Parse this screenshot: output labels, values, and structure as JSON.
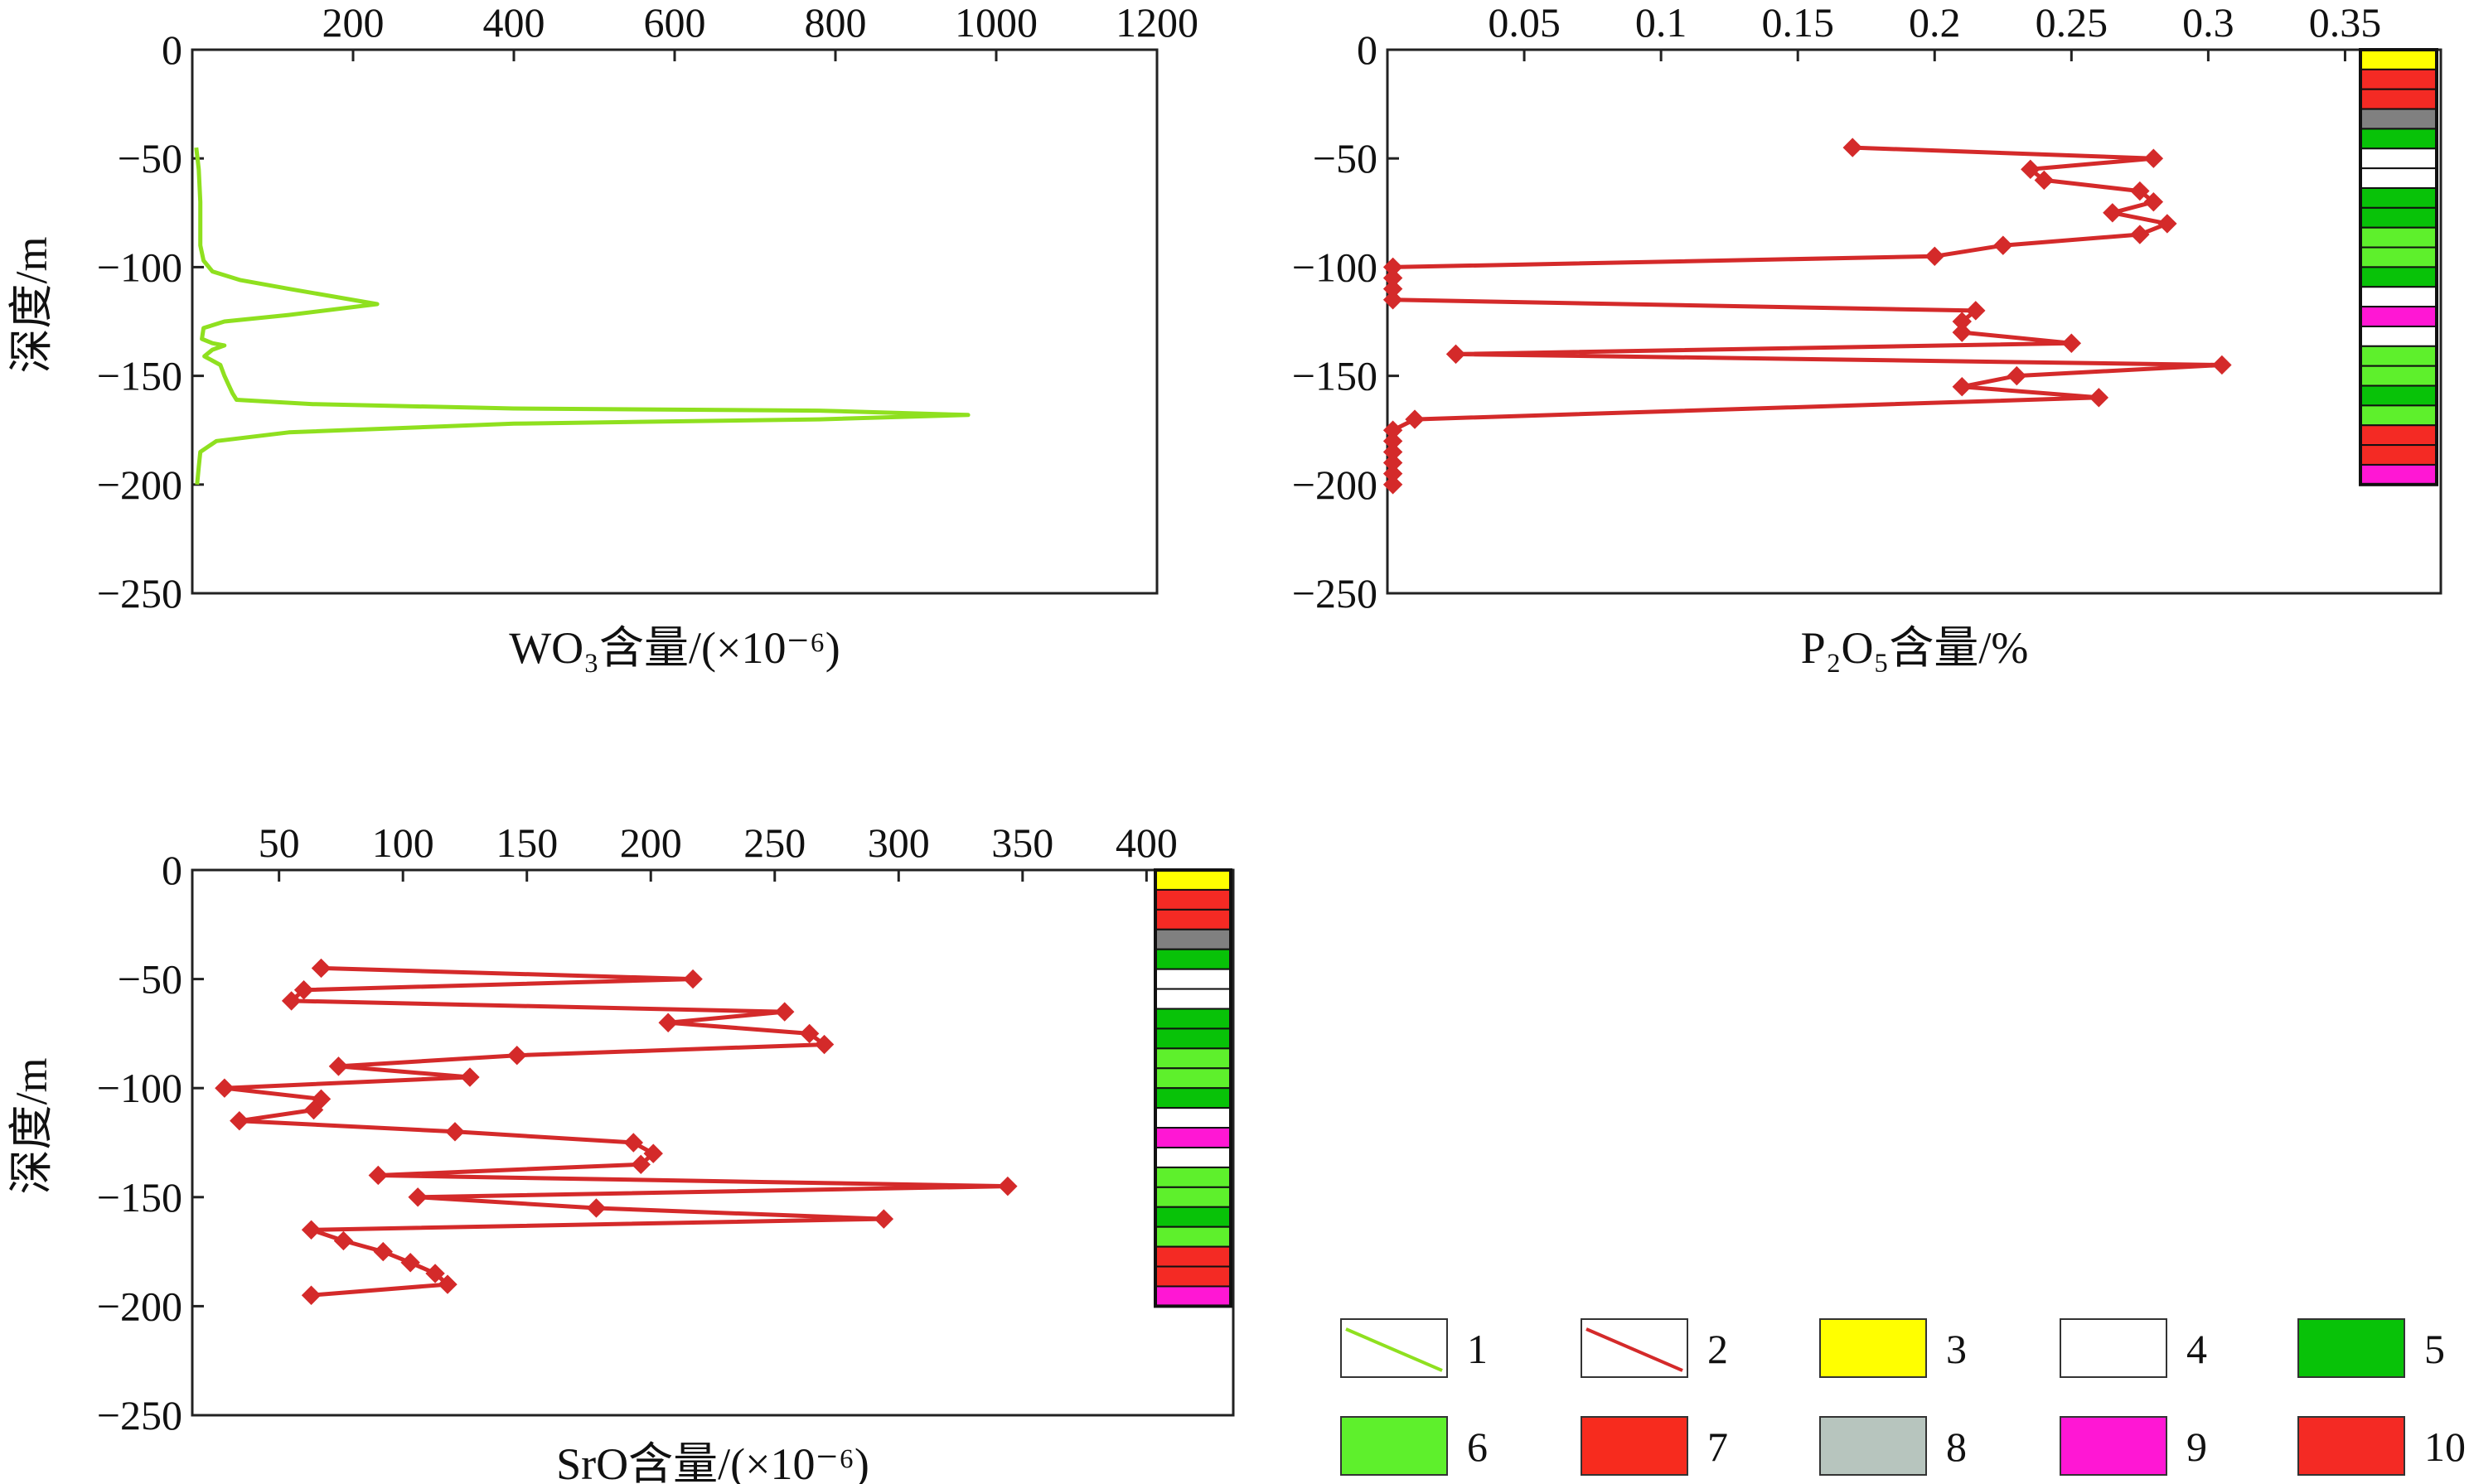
{
  "chart_data": [
    {
      "type": "line",
      "x_axis_position": "top",
      "xlabel": "WO₃含量/(×10⁻⁶)",
      "ylabel": "深度/m",
      "xlim": [
        0,
        1200
      ],
      "ylim": [
        -250,
        0
      ],
      "xticks": [
        "200",
        "400",
        "600",
        "800",
        "1000",
        "1200"
      ],
      "yticks": [
        "0",
        "−50",
        "−100",
        "−150",
        "−200",
        "−250"
      ],
      "series": [
        {
          "color": "#8fe01f",
          "marker": "none",
          "points": [
            [
              5,
              -45
            ],
            [
              8,
              -55
            ],
            [
              10,
              -70
            ],
            [
              10,
              -90
            ],
            [
              14,
              -97
            ],
            [
              25,
              -102
            ],
            [
              60,
              -106
            ],
            [
              120,
              -110
            ],
            [
              230,
              -117
            ],
            [
              120,
              -122
            ],
            [
              40,
              -125
            ],
            [
              14,
              -128
            ],
            [
              12,
              -133
            ],
            [
              25,
              -135
            ],
            [
              40,
              -136
            ],
            [
              25,
              -138
            ],
            [
              15,
              -141
            ],
            [
              35,
              -145
            ],
            [
              40,
              -150
            ],
            [
              45,
              -154
            ],
            [
              50,
              -158
            ],
            [
              55,
              -161
            ],
            [
              150,
              -163
            ],
            [
              400,
              -165
            ],
            [
              780,
              -166
            ],
            [
              965,
              -168
            ],
            [
              780,
              -170
            ],
            [
              400,
              -172
            ],
            [
              120,
              -176
            ],
            [
              30,
              -180
            ],
            [
              10,
              -185
            ],
            [
              8,
              -192
            ],
            [
              6,
              -200
            ]
          ]
        }
      ]
    },
    {
      "type": "line",
      "x_axis_position": "top",
      "xlabel": "P₂O₅含量/%",
      "ylabel": "",
      "xlim": [
        0,
        0.385
      ],
      "ylim": [
        -250,
        0
      ],
      "xticks": [
        "0.05",
        "0.1",
        "0.15",
        "0.2",
        "0.25",
        "0.3",
        "0.35"
      ],
      "yticks": [
        "0",
        "−50",
        "−100",
        "−150",
        "−200",
        "−250"
      ],
      "series": [
        {
          "color": "#d42a2a",
          "marker": "diamond",
          "points": [
            [
              0.17,
              -45
            ],
            [
              0.28,
              -50
            ],
            [
              0.235,
              -55
            ],
            [
              0.24,
              -60
            ],
            [
              0.275,
              -65
            ],
            [
              0.28,
              -70
            ],
            [
              0.265,
              -75
            ],
            [
              0.285,
              -80
            ],
            [
              0.275,
              -85
            ],
            [
              0.225,
              -90
            ],
            [
              0.2,
              -95
            ],
            [
              0.002,
              -100
            ],
            [
              0.002,
              -105
            ],
            [
              0.002,
              -110
            ],
            [
              0.002,
              -115
            ],
            [
              0.215,
              -120
            ],
            [
              0.21,
              -125
            ],
            [
              0.21,
              -130
            ],
            [
              0.25,
              -135
            ],
            [
              0.025,
              -140
            ],
            [
              0.305,
              -145
            ],
            [
              0.23,
              -150
            ],
            [
              0.21,
              -155
            ],
            [
              0.26,
              -160
            ],
            [
              0.01,
              -170
            ],
            [
              0.002,
              -175
            ],
            [
              0.002,
              -180
            ],
            [
              0.002,
              -185
            ],
            [
              0.002,
              -190
            ],
            [
              0.002,
              -195
            ],
            [
              0.002,
              -200
            ]
          ]
        }
      ],
      "lithology_column": [
        "yellow",
        "red",
        "red",
        "gray",
        "green",
        "white",
        "white",
        "green",
        "green",
        "lightgreen",
        "lightgreen",
        "green",
        "white",
        "magenta",
        "white",
        "lightgreen",
        "lightgreen",
        "green",
        "lightgreen",
        "red",
        "red",
        "magenta"
      ]
    },
    {
      "type": "line",
      "x_axis_position": "top",
      "xlabel": "SrO含量/(×10⁻⁶)",
      "ylabel": "深度/m",
      "xlim": [
        15,
        435
      ],
      "ylim": [
        -250,
        0
      ],
      "xticks": [
        "50",
        "100",
        "150",
        "200",
        "250",
        "300",
        "350",
        "400"
      ],
      "yticks": [
        "0",
        "−50",
        "−100",
        "−150",
        "−200",
        "−250"
      ],
      "series": [
        {
          "color": "#d42a2a",
          "marker": "diamond",
          "points": [
            [
              67,
              -45
            ],
            [
              217,
              -50
            ],
            [
              60,
              -55
            ],
            [
              55,
              -60
            ],
            [
              254,
              -65
            ],
            [
              207,
              -70
            ],
            [
              264,
              -75
            ],
            [
              270,
              -80
            ],
            [
              146,
              -85
            ],
            [
              74,
              -90
            ],
            [
              127,
              -95
            ],
            [
              28,
              -100
            ],
            [
              67,
              -105
            ],
            [
              64,
              -110
            ],
            [
              34,
              -115
            ],
            [
              121,
              -120
            ],
            [
              193,
              -125
            ],
            [
              201,
              -130
            ],
            [
              196,
              -135
            ],
            [
              90,
              -140
            ],
            [
              344,
              -145
            ],
            [
              106,
              -150
            ],
            [
              178,
              -155
            ],
            [
              294,
              -160
            ],
            [
              63,
              -165
            ],
            [
              76,
              -170
            ],
            [
              92,
              -175
            ],
            [
              103,
              -180
            ],
            [
              113,
              -185
            ],
            [
              118,
              -190
            ],
            [
              63,
              -195
            ]
          ]
        }
      ],
      "lithology_column": [
        "yellow",
        "red",
        "red",
        "gray",
        "green",
        "white",
        "white",
        "green",
        "green",
        "lightgreen",
        "lightgreen",
        "green",
        "white",
        "magenta",
        "white",
        "lightgreen",
        "lightgreen",
        "green",
        "lightgreen",
        "red",
        "red",
        "magenta"
      ]
    }
  ],
  "legend": [
    {
      "num": "1",
      "kind": "line",
      "color": "#8fe01f"
    },
    {
      "num": "2",
      "kind": "line",
      "color": "#d42a2a"
    },
    {
      "num": "3",
      "kind": "fill",
      "color": "#ffff00"
    },
    {
      "num": "4",
      "kind": "fill",
      "color": "#ffffff"
    },
    {
      "num": "5",
      "kind": "fill",
      "color": "#08c208"
    },
    {
      "num": "6",
      "kind": "fill",
      "color": "#5ef02c"
    },
    {
      "num": "7",
      "kind": "fill",
      "color": "#f72b1e"
    },
    {
      "num": "8",
      "kind": "fill",
      "color": "#b7c5be"
    },
    {
      "num": "9",
      "kind": "fill",
      "color": "#ff17d4"
    },
    {
      "num": "10",
      "kind": "fill",
      "color": "#f42a24"
    }
  ],
  "colors": {
    "yellow": "#ffff00",
    "red": "#f42a24",
    "gray": "#808080",
    "green": "#08c208",
    "lightgreen": "#5ef02c",
    "white": "#ffffff",
    "magenta": "#ff17d4"
  }
}
